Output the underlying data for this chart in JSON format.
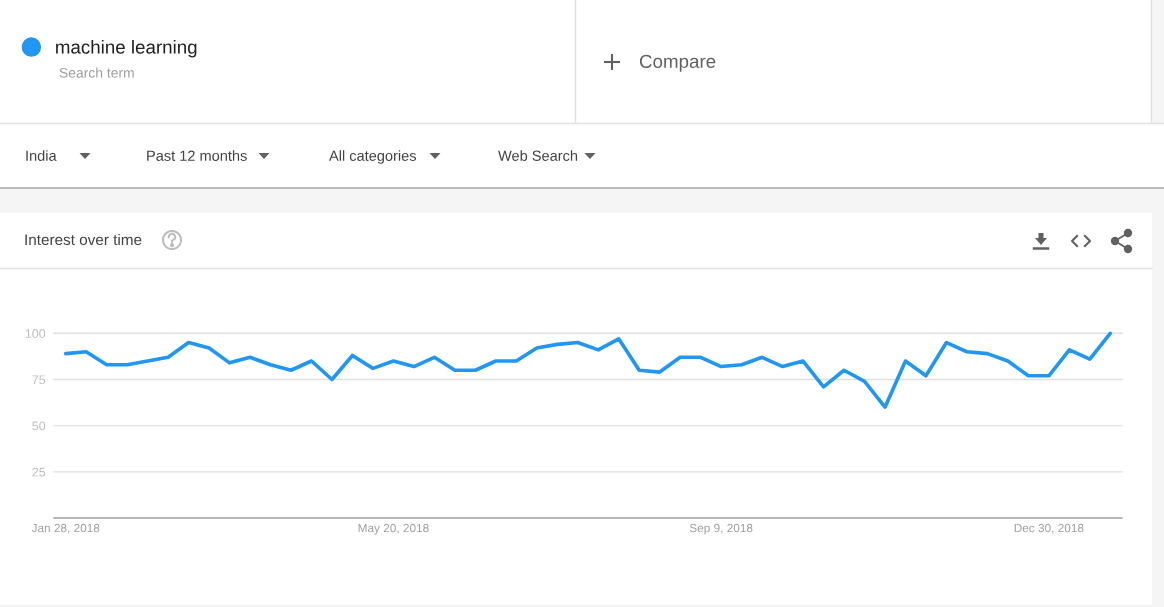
{
  "chart_data": {
    "type": "line",
    "title": "Interest over time",
    "x": [
      "2018-01-28",
      "2018-02-04",
      "2018-02-11",
      "2018-02-18",
      "2018-02-25",
      "2018-03-04",
      "2018-03-11",
      "2018-03-18",
      "2018-03-25",
      "2018-04-01",
      "2018-04-08",
      "2018-04-15",
      "2018-04-22",
      "2018-04-29",
      "2018-05-06",
      "2018-05-13",
      "2018-05-20",
      "2018-05-27",
      "2018-06-03",
      "2018-06-10",
      "2018-06-17",
      "2018-06-24",
      "2018-07-01",
      "2018-07-08",
      "2018-07-15",
      "2018-07-22",
      "2018-07-29",
      "2018-08-05",
      "2018-08-12",
      "2018-08-19",
      "2018-08-26",
      "2018-09-02",
      "2018-09-09",
      "2018-09-16",
      "2018-09-23",
      "2018-09-30",
      "2018-10-07",
      "2018-10-14",
      "2018-10-21",
      "2018-10-28",
      "2018-11-04",
      "2018-11-11",
      "2018-11-18",
      "2018-11-25",
      "2018-12-02",
      "2018-12-09",
      "2018-12-16",
      "2018-12-23",
      "2018-12-30",
      "2019-01-06",
      "2019-01-13",
      "2019-01-20"
    ],
    "series": [
      {
        "name": "machine learning",
        "color": "#2196f3",
        "values": [
          89,
          90,
          83,
          83,
          85,
          87,
          95,
          92,
          84,
          87,
          83,
          80,
          85,
          75,
          88,
          81,
          85,
          82,
          87,
          80,
          80,
          85,
          85,
          92,
          94,
          95,
          91,
          97,
          80,
          79,
          87,
          87,
          82,
          83,
          87,
          82,
          85,
          71,
          80,
          74,
          60,
          85,
          77,
          95,
          90,
          89,
          85,
          77,
          77,
          91,
          86,
          100
        ]
      }
    ],
    "xlim": [
      "2018-01-24",
      "2019-01-24"
    ],
    "xticks": [
      {
        "value": "2018-01-28",
        "label": "Jan 28, 2018"
      },
      {
        "value": "2018-05-20",
        "label": "May 20, 2018"
      },
      {
        "value": "2018-09-09",
        "label": "Sep 9, 2018"
      },
      {
        "value": "2018-12-30",
        "label": "Dec 30, 2018"
      }
    ],
    "ylim": [
      0,
      100
    ],
    "yticks": [
      25,
      50,
      75,
      100
    ],
    "grid": "y",
    "legend": "top left",
    "line_style": "solid",
    "annotations": [
      "Search term",
      "Compare",
      "India",
      "Past 12 months",
      "All categories",
      "Web Search"
    ]
  }
}
